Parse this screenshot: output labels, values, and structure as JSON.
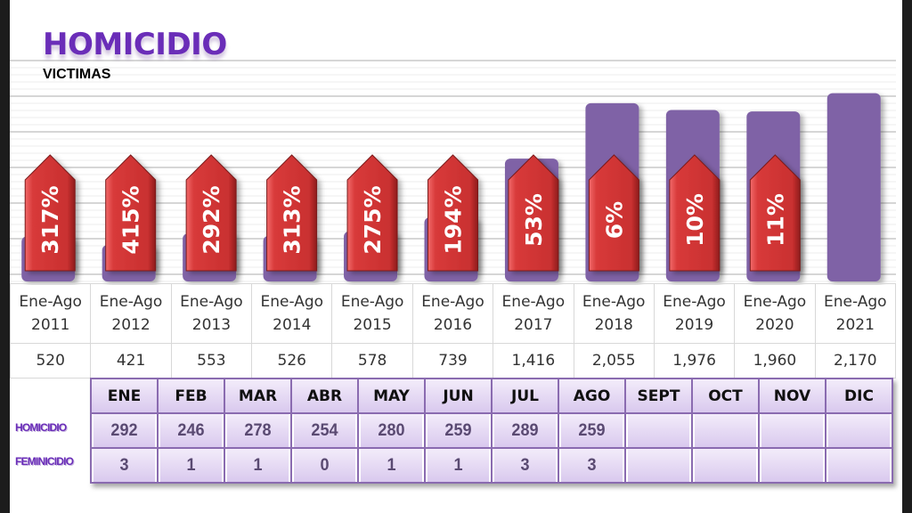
{
  "header": {
    "title": "HOMICIDIO",
    "subtitle": "VICTIMAS"
  },
  "colors": {
    "bar": "#7f62a6",
    "arrow": "#d23a3a",
    "title": "#6a2db8",
    "table_border": "#8a6bb0"
  },
  "chart_data": {
    "type": "bar",
    "title": "HOMICIDIO",
    "subtitle": "VICTIMAS",
    "categories": [
      "Ene-Ago 2011",
      "Ene-Ago 2012",
      "Ene-Ago 2013",
      "Ene-Ago 2014",
      "Ene-Ago 2015",
      "Ene-Ago 2016",
      "Ene-Ago 2017",
      "Ene-Ago 2018",
      "Ene-Ago 2019",
      "Ene-Ago 2020",
      "Ene-Ago 2021"
    ],
    "category_lines": [
      [
        "Ene-Ago",
        "2011"
      ],
      [
        "Ene-Ago",
        "2012"
      ],
      [
        "Ene-Ago",
        "2013"
      ],
      [
        "Ene-Ago",
        "2014"
      ],
      [
        "Ene-Ago",
        "2015"
      ],
      [
        "Ene-Ago",
        "2016"
      ],
      [
        "Ene-Ago",
        "2017"
      ],
      [
        "Ene-Ago",
        "2018"
      ],
      [
        "Ene-Ago",
        "2019"
      ],
      [
        "Ene-Ago",
        "2020"
      ],
      [
        "Ene-Ago",
        "2021"
      ]
    ],
    "values": [
      520,
      421,
      553,
      526,
      578,
      739,
      1416,
      2055,
      1976,
      1960,
      2170
    ],
    "value_labels": [
      "520",
      "421",
      "553",
      "526",
      "578",
      "739",
      "1,416",
      "2,055",
      "1,976",
      "1,960",
      "2,170"
    ],
    "percent_change_labels": [
      "317%",
      "415%",
      "292%",
      "313%",
      "275%",
      "194%",
      "53%",
      "6%",
      "10%",
      "11%",
      ""
    ],
    "ylim": [
      0,
      2300
    ],
    "grid": true,
    "xlabel": "",
    "ylabel": ""
  },
  "monthly_table": {
    "months": [
      "ENE",
      "FEB",
      "MAR",
      "ABR",
      "MAY",
      "JUN",
      "JUL",
      "AGO",
      "SEPT",
      "OCT",
      "NOV",
      "DIC"
    ],
    "rows": [
      {
        "label": "HOMICIDIO",
        "values": [
          "292",
          "246",
          "278",
          "254",
          "280",
          "259",
          "289",
          "259",
          "",
          "",
          "",
          ""
        ]
      },
      {
        "label": "FEMINICIDIO",
        "values": [
          "3",
          "1",
          "1",
          "0",
          "1",
          "1",
          "3",
          "3",
          "",
          "",
          "",
          ""
        ]
      }
    ]
  }
}
